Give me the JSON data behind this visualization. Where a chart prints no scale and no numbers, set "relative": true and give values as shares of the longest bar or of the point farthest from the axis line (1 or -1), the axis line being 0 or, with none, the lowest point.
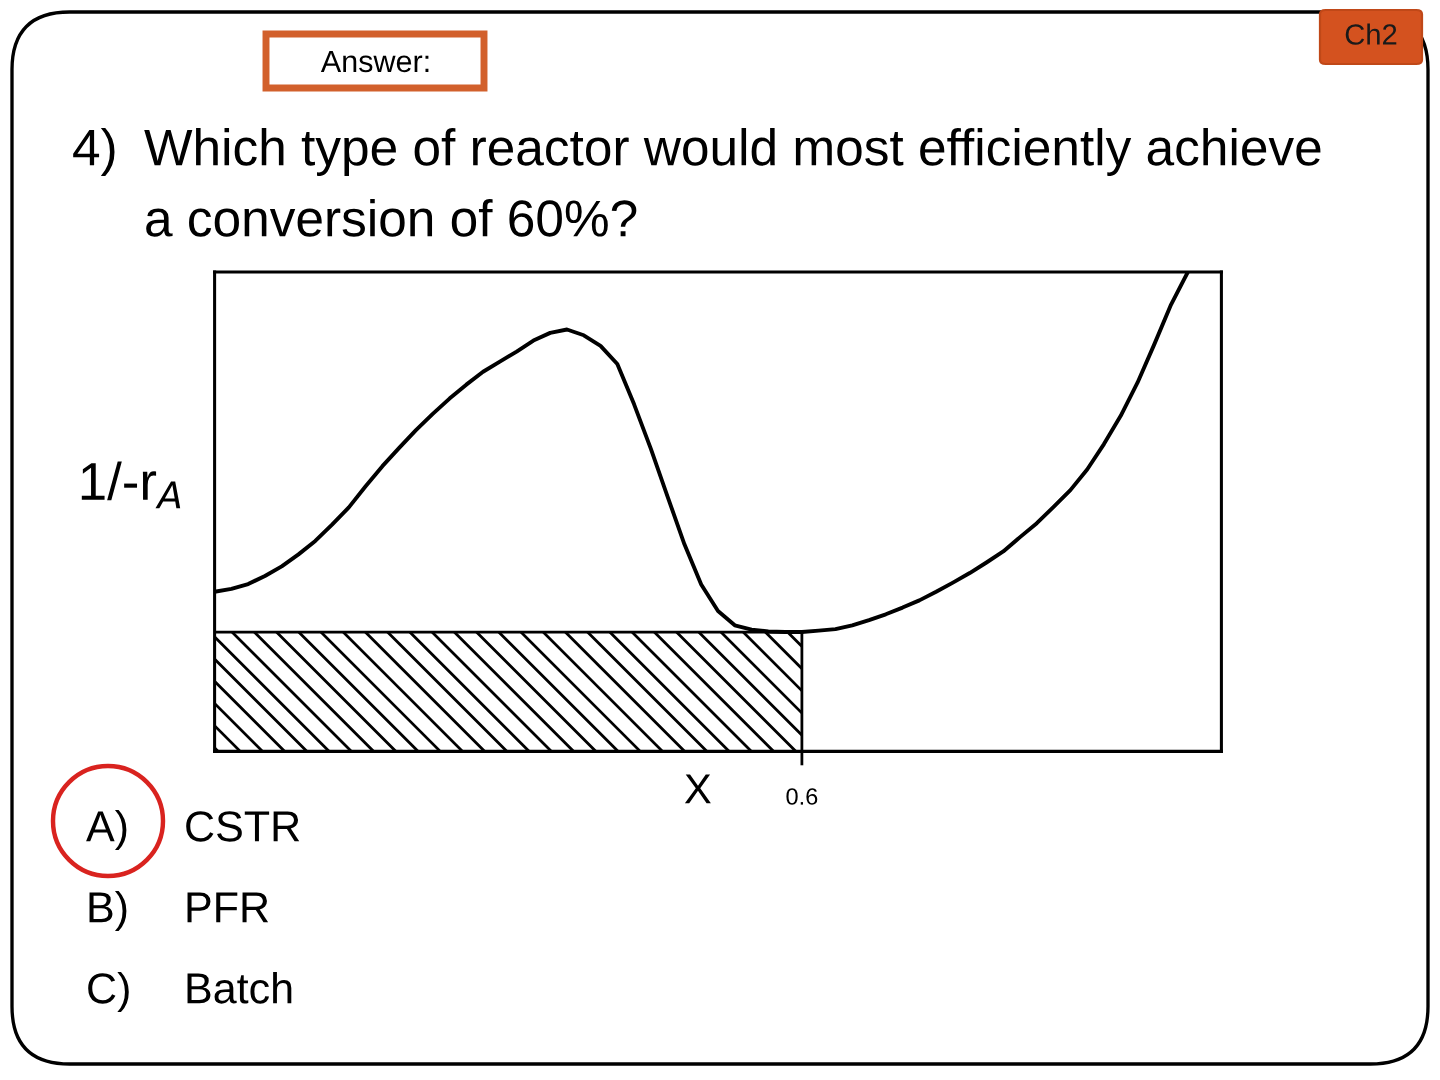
{
  "chart_data": {
    "type": "line",
    "title": "4) Which type of reactor would most efficiently achieve\na conversion of 60%?",
    "xlabel": "X",
    "ylabel": "1/-r$_{A}$",
    "annotations": [
      "Ch2",
      "Answer:",
      "A) CSTR",
      "B) PFR",
      "C) Batch",
      "0.6"
    ],
    "relative": true,
    "categories": [
      null,
      null,
      null,
      null,
      null,
      null,
      null,
      null,
      null,
      null,
      null,
      null,
      null,
      null,
      null,
      null,
      null,
      null,
      null,
      null,
      null,
      null,
      null,
      null,
      null,
      null,
      null,
      null,
      null,
      null,
      null,
      null,
      null,
      null,
      null,
      null,
      null,
      null,
      null,
      null,
      null,
      null,
      null,
      null,
      null,
      null,
      null,
      null,
      null,
      null,
      null,
      null,
      null,
      null,
      null,
      null,
      null,
      null,
      null,
      null,
      null
    ],
    "series": [
      {
        "color": "#000000",
        "values": [
          0.333,
          0.339,
          0.349,
          0.366,
          0.386,
          0.411,
          0.439,
          0.473,
          0.509,
          0.553,
          0.595,
          0.633,
          0.67,
          0.704,
          0.736,
          0.765,
          0.792,
          0.813,
          0.834,
          0.857,
          0.873,
          0.88,
          0.868,
          0.846,
          0.808,
          0.724,
          0.631,
          0.531,
          0.432,
          0.348,
          0.293,
          0.263,
          0.254,
          0.25,
          0.249,
          0.249,
          0.252,
          0.255,
          0.263,
          0.274,
          0.286,
          0.3,
          0.315,
          0.333,
          0.352,
          0.372,
          0.394,
          0.417,
          0.447,
          0.476,
          0.51,
          0.545,
          0.588,
          0.641,
          0.7,
          0.769,
          0.849,
          0.932,
          1.0,
          null,
          null
        ]
      },
      {
        "type": "area",
        "color": "#000000",
        "values": [
          0.249,
          0.249,
          0.249,
          0.249,
          0.249,
          0.249,
          0.249,
          0.249,
          0.249,
          0.249,
          0.249,
          0.249,
          0.249,
          0.249,
          0.249,
          0.249,
          0.249,
          0.249,
          0.249,
          0.249,
          0.249,
          0.249,
          0.249,
          0.249,
          0.249,
          0.249,
          0.249,
          0.249,
          0.249,
          0.249,
          0.249,
          0.249,
          0.249,
          0.249,
          0.249,
          0.249,
          null,
          null,
          null,
          null,
          null,
          null,
          null,
          null,
          null,
          null,
          null,
          null,
          null,
          null,
          null,
          null,
          null,
          null,
          null,
          null,
          null,
          null,
          null,
          null,
          null
        ]
      }
    ]
  }
}
